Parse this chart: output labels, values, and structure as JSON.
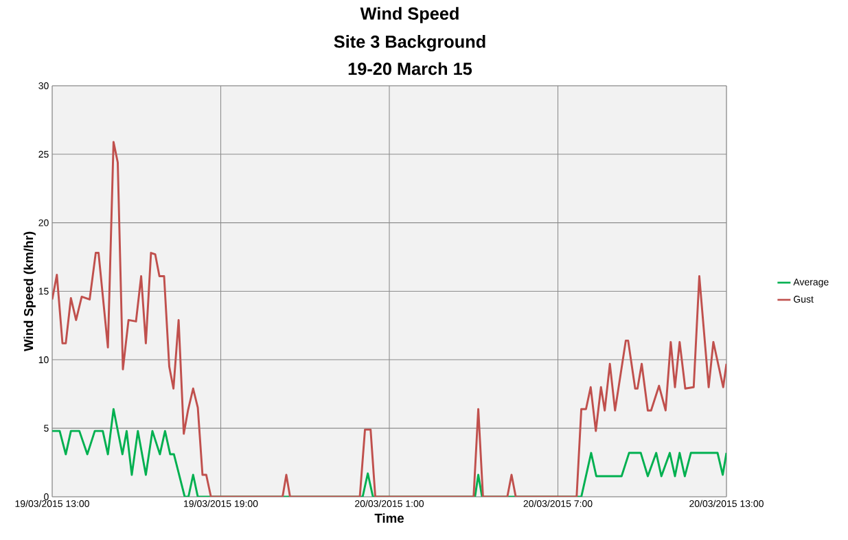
{
  "chart_data": {
    "type": "line",
    "title": "Wind Speed",
    "subtitle": "Site 3 Background",
    "annotations": [
      "19-20 March 15"
    ],
    "xlabel": "Time",
    "ylabel": "Wind Speed (km/hr)",
    "xlim": [
      "2015-03-19T13:00",
      "2015-03-20T13:00"
    ],
    "xticks": [
      {
        "value": "2015-03-19T13:00",
        "label": "19/03/2015 13:00"
      },
      {
        "value": "2015-03-19T19:00",
        "label": "19/03/2015 19:00"
      },
      {
        "value": "2015-03-20T01:00",
        "label": "20/03/2015 1:00"
      },
      {
        "value": "2015-03-20T07:00",
        "label": "20/03/2015 7:00"
      },
      {
        "value": "2015-03-20T13:00",
        "label": "20/03/2015 13:00"
      }
    ],
    "ylim": [
      0,
      30
    ],
    "yticks": [
      0,
      5,
      10,
      15,
      20,
      25,
      30
    ],
    "grid": true,
    "legend": "right",
    "series": [
      {
        "name": "Average",
        "color": "#00b050",
        "x": [
          "2015-03-19T13:00",
          "2015-03-19T13:16",
          "2015-03-19T13:29",
          "2015-03-19T13:40",
          "2015-03-19T13:58",
          "2015-03-19T14:15",
          "2015-03-19T14:31",
          "2015-03-19T14:48",
          "2015-03-19T14:59",
          "2015-03-19T15:11",
          "2015-03-19T15:30",
          "2015-03-19T15:39",
          "2015-03-19T15:50",
          "2015-03-19T16:03",
          "2015-03-19T16:20",
          "2015-03-19T16:34",
          "2015-03-19T16:50",
          "2015-03-19T17:01",
          "2015-03-19T17:12",
          "2015-03-19T17:20",
          "2015-03-19T17:43",
          "2015-03-19T17:51",
          "2015-03-19T18:01",
          "2015-03-19T18:11",
          "2015-03-20T00:03",
          "2015-03-20T00:14",
          "2015-03-20T00:25",
          "2015-03-20T04:03",
          "2015-03-20T04:10",
          "2015-03-20T04:18",
          "2015-03-20T07:50",
          "2015-03-20T08:11",
          "2015-03-20T08:22",
          "2015-03-20T09:16",
          "2015-03-20T09:32",
          "2015-03-20T09:57",
          "2015-03-20T10:12",
          "2015-03-20T10:30",
          "2015-03-20T10:41",
          "2015-03-20T10:59",
          "2015-03-20T11:10",
          "2015-03-20T11:20",
          "2015-03-20T11:31",
          "2015-03-20T11:44",
          "2015-03-20T12:41",
          "2015-03-20T12:52",
          "2015-03-20T13:00"
        ],
        "values": [
          4.8,
          4.8,
          3.1,
          4.8,
          4.8,
          3.1,
          4.8,
          4.8,
          3.1,
          6.4,
          3.1,
          4.8,
          1.6,
          4.8,
          1.6,
          4.8,
          3.1,
          4.8,
          3.1,
          3.1,
          0,
          0,
          1.6,
          0,
          0,
          1.7,
          0,
          0,
          1.6,
          0,
          0,
          3.2,
          1.5,
          1.5,
          3.2,
          3.2,
          1.5,
          3.2,
          1.5,
          3.2,
          1.5,
          3.2,
          1.5,
          3.2,
          3.2,
          1.6,
          3.2
        ]
      },
      {
        "name": "Gust",
        "color": "#c0504d",
        "x": [
          "2015-03-19T13:00",
          "2015-03-19T13:10",
          "2015-03-19T13:22",
          "2015-03-19T13:29",
          "2015-03-19T13:40",
          "2015-03-19T13:51",
          "2015-03-19T14:03",
          "2015-03-19T14:20",
          "2015-03-19T14:33",
          "2015-03-19T14:39",
          "2015-03-19T14:59",
          "2015-03-19T15:11",
          "2015-03-19T15:20",
          "2015-03-19T15:31",
          "2015-03-19T15:43",
          "2015-03-19T15:59",
          "2015-03-19T16:10",
          "2015-03-19T16:20",
          "2015-03-19T16:31",
          "2015-03-19T16:40",
          "2015-03-19T16:49",
          "2015-03-19T16:59",
          "2015-03-19T17:10",
          "2015-03-19T17:19",
          "2015-03-19T17:30",
          "2015-03-19T17:41",
          "2015-03-19T17:50",
          "2015-03-19T18:01",
          "2015-03-19T18:11",
          "2015-03-19T18:21",
          "2015-03-19T18:29",
          "2015-03-19T18:39",
          "2015-03-19T21:12",
          "2015-03-19T21:20",
          "2015-03-19T21:28",
          "2015-03-19T23:57",
          "2015-03-20T00:08",
          "2015-03-20T00:20",
          "2015-03-20T00:30",
          "2015-03-20T04:00",
          "2015-03-20T04:10",
          "2015-03-20T04:20",
          "2015-03-20T05:12",
          "2015-03-20T05:21",
          "2015-03-20T05:30",
          "2015-03-20T07:40",
          "2015-03-20T07:50",
          "2015-03-20T08:00",
          "2015-03-20T08:10",
          "2015-03-20T08:21",
          "2015-03-20T08:32",
          "2015-03-20T08:40",
          "2015-03-20T08:51",
          "2015-03-20T09:02",
          "2015-03-20T09:25",
          "2015-03-20T09:30",
          "2015-03-20T09:45",
          "2015-03-20T09:50",
          "2015-03-20T09:59",
          "2015-03-20T10:12",
          "2015-03-20T10:19",
          "2015-03-20T10:36",
          "2015-03-20T10:50",
          "2015-03-20T11:01",
          "2015-03-20T11:10",
          "2015-03-20T11:20",
          "2015-03-20T11:32",
          "2015-03-20T11:50",
          "2015-03-20T12:02",
          "2015-03-20T12:22",
          "2015-03-20T12:32",
          "2015-03-20T12:53",
          "2015-03-20T13:00"
        ],
        "values": [
          14.4,
          16.2,
          11.2,
          11.2,
          14.5,
          12.9,
          14.6,
          14.4,
          17.8,
          17.8,
          10.9,
          25.9,
          24.4,
          9.3,
          12.9,
          12.8,
          16.1,
          11.2,
          17.8,
          17.7,
          16.1,
          16.1,
          9.5,
          7.9,
          12.9,
          4.6,
          6.3,
          7.9,
          6.5,
          1.6,
          1.6,
          0,
          0,
          1.6,
          0,
          0,
          4.9,
          4.9,
          0,
          0,
          6.4,
          0,
          0,
          1.6,
          0,
          0,
          6.4,
          6.4,
          8.0,
          4.8,
          8.0,
          6.3,
          9.7,
          6.3,
          11.4,
          11.4,
          7.9,
          7.9,
          9.7,
          6.3,
          6.3,
          8.1,
          6.3,
          11.3,
          8.0,
          11.3,
          7.9,
          8.0,
          16.1,
          8.0,
          11.3,
          8.0,
          9.7
        ]
      }
    ]
  }
}
